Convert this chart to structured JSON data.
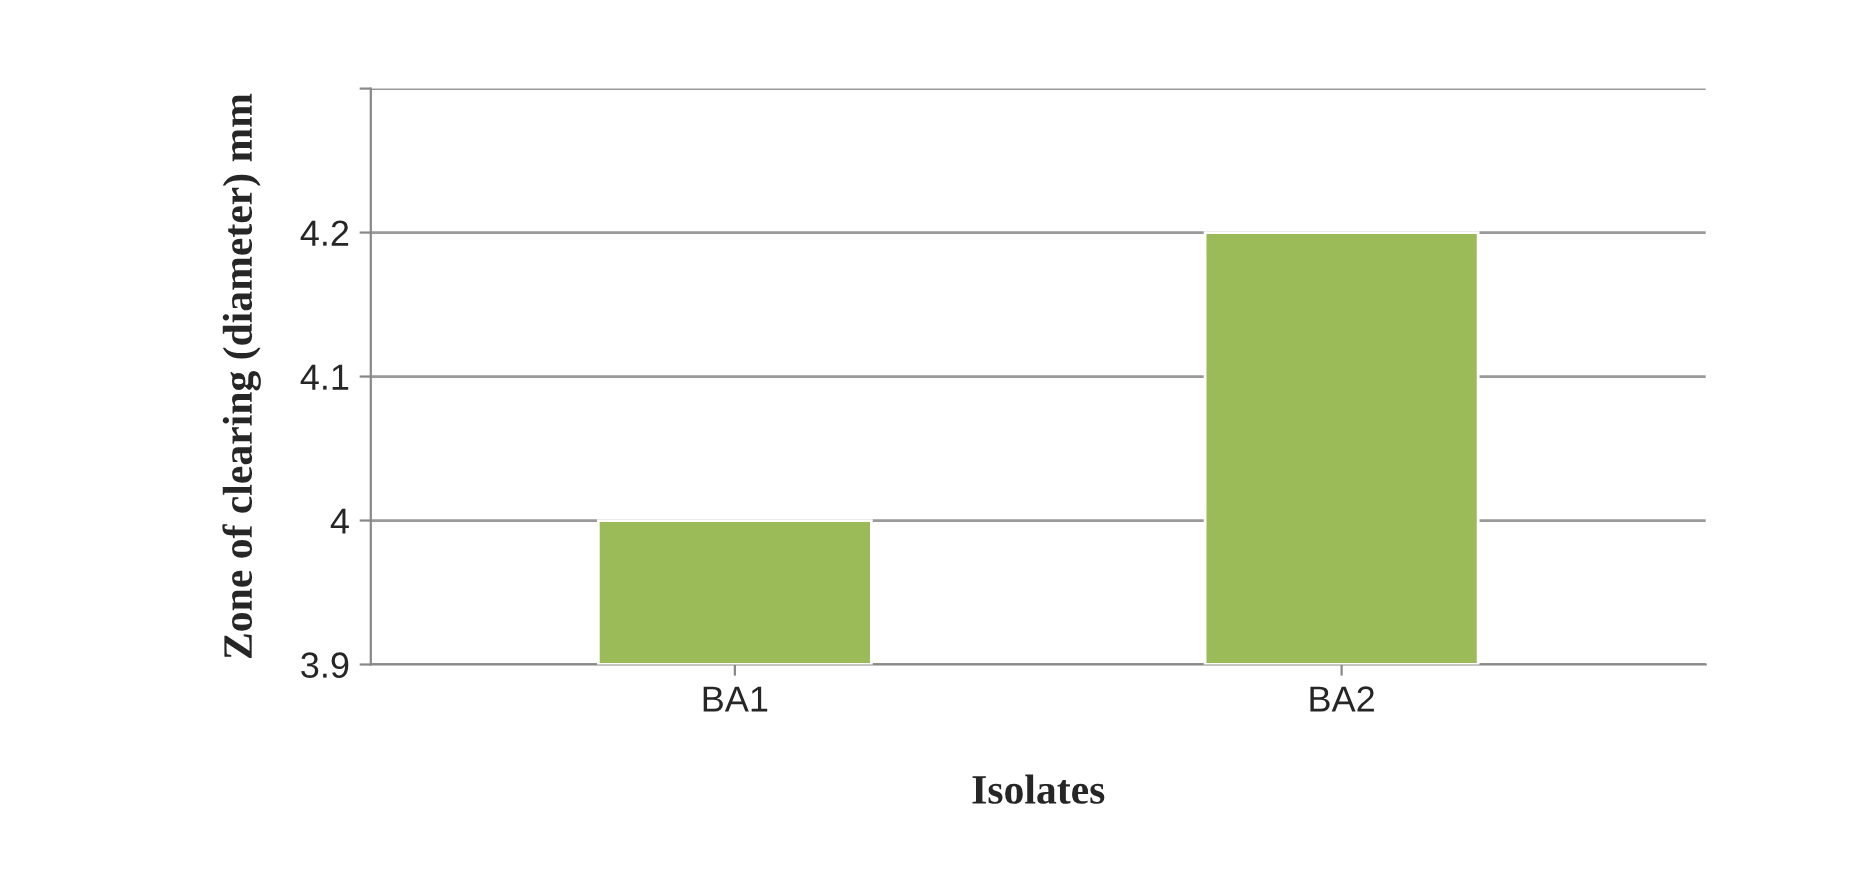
{
  "chart_data": {
    "type": "bar",
    "xlabel": "Isolates",
    "ylabel": "Zone of clearing (diameter) mm",
    "categories": [
      "BA1",
      "BA2"
    ],
    "values": [
      4.0,
      4.2
    ],
    "color": "#9bbb59",
    "ylim": [
      3.9,
      4.3
    ],
    "yticks": [
      3.9,
      4,
      4.1,
      4.2,
      {
        "value": 4.3,
        "label": null
      }
    ],
    "grid": "y"
  }
}
